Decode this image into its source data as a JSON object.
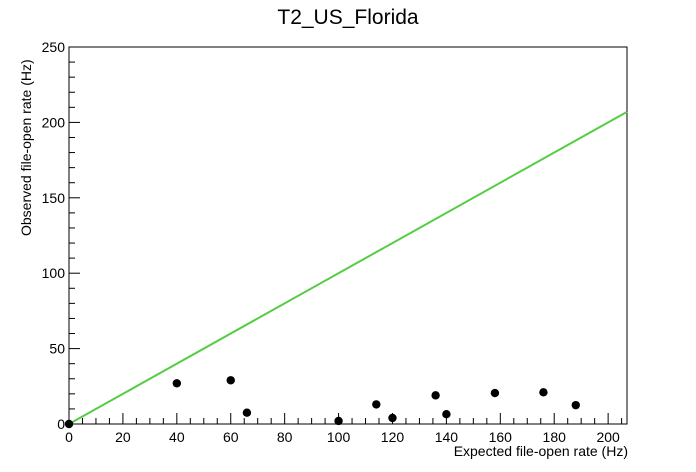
{
  "chart_data": {
    "type": "scatter",
    "title": "T2_US_Florida",
    "xlabel": "Expected file-open rate (Hz)",
    "ylabel": "Observed file-open rate (Hz)",
    "xlim": [
      0,
      207
    ],
    "ylim": [
      0,
      250
    ],
    "x_ticks": [
      0,
      20,
      40,
      60,
      80,
      100,
      120,
      140,
      160,
      180,
      200
    ],
    "y_ticks": [
      0,
      50,
      100,
      150,
      200,
      250
    ],
    "x_tick_labels": [
      "0",
      "20",
      "40",
      "60",
      "80",
      "100",
      "120",
      "140",
      "160",
      "180",
      "200"
    ],
    "y_tick_labels": [
      "0",
      "50",
      "100",
      "150",
      "200",
      "250"
    ],
    "grid": false,
    "series": [
      {
        "type": "scatter",
        "color": "#000000",
        "points": [
          {
            "x": 0,
            "y": 0
          },
          {
            "x": 40,
            "y": 27
          },
          {
            "x": 60,
            "y": 29
          },
          {
            "x": 66,
            "y": 7.5
          },
          {
            "x": 100,
            "y": 2
          },
          {
            "x": 114,
            "y": 13
          },
          {
            "x": 120,
            "y": 4
          },
          {
            "x": 136,
            "y": 19
          },
          {
            "x": 140,
            "y": 6.5
          },
          {
            "x": 158,
            "y": 20.5
          },
          {
            "x": 176,
            "y": 21
          },
          {
            "x": 188,
            "y": 12.5
          }
        ]
      },
      {
        "type": "line",
        "color": "#55cc44",
        "points": [
          {
            "x": 0,
            "y": 0
          },
          {
            "x": 207,
            "y": 207
          }
        ]
      }
    ]
  }
}
